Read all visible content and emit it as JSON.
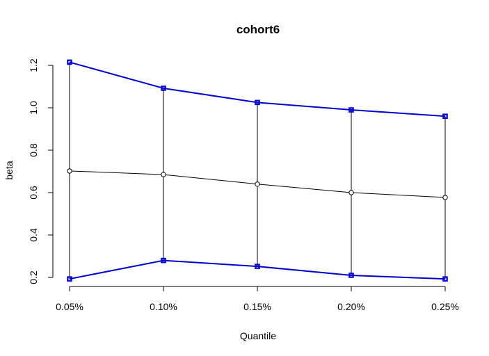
{
  "chart_data": {
    "type": "line",
    "title": "cohort6",
    "xlabel": "Quantile",
    "ylabel": "beta",
    "categories": [
      "0.05%",
      "0.10%",
      "0.15%",
      "0.20%",
      "0.25%"
    ],
    "yticks": [
      "0.2",
      "0.4",
      "0.6",
      "0.8",
      "1.0",
      "1.2"
    ],
    "ylim": [
      0.2,
      1.2
    ],
    "grid": false,
    "series": [
      {
        "values": [
          1.215,
          1.092,
          1.025,
          0.99,
          0.96
        ],
        "color": "#0000cc",
        "marker": "square"
      },
      {
        "values": [
          0.702,
          0.685,
          0.64,
          0.6,
          0.577
        ],
        "color": "#000000",
        "marker": "circle"
      },
      {
        "values": [
          0.193,
          0.28,
          0.252,
          0.21,
          0.193
        ],
        "color": "#0000cc",
        "marker": "square"
      }
    ]
  }
}
